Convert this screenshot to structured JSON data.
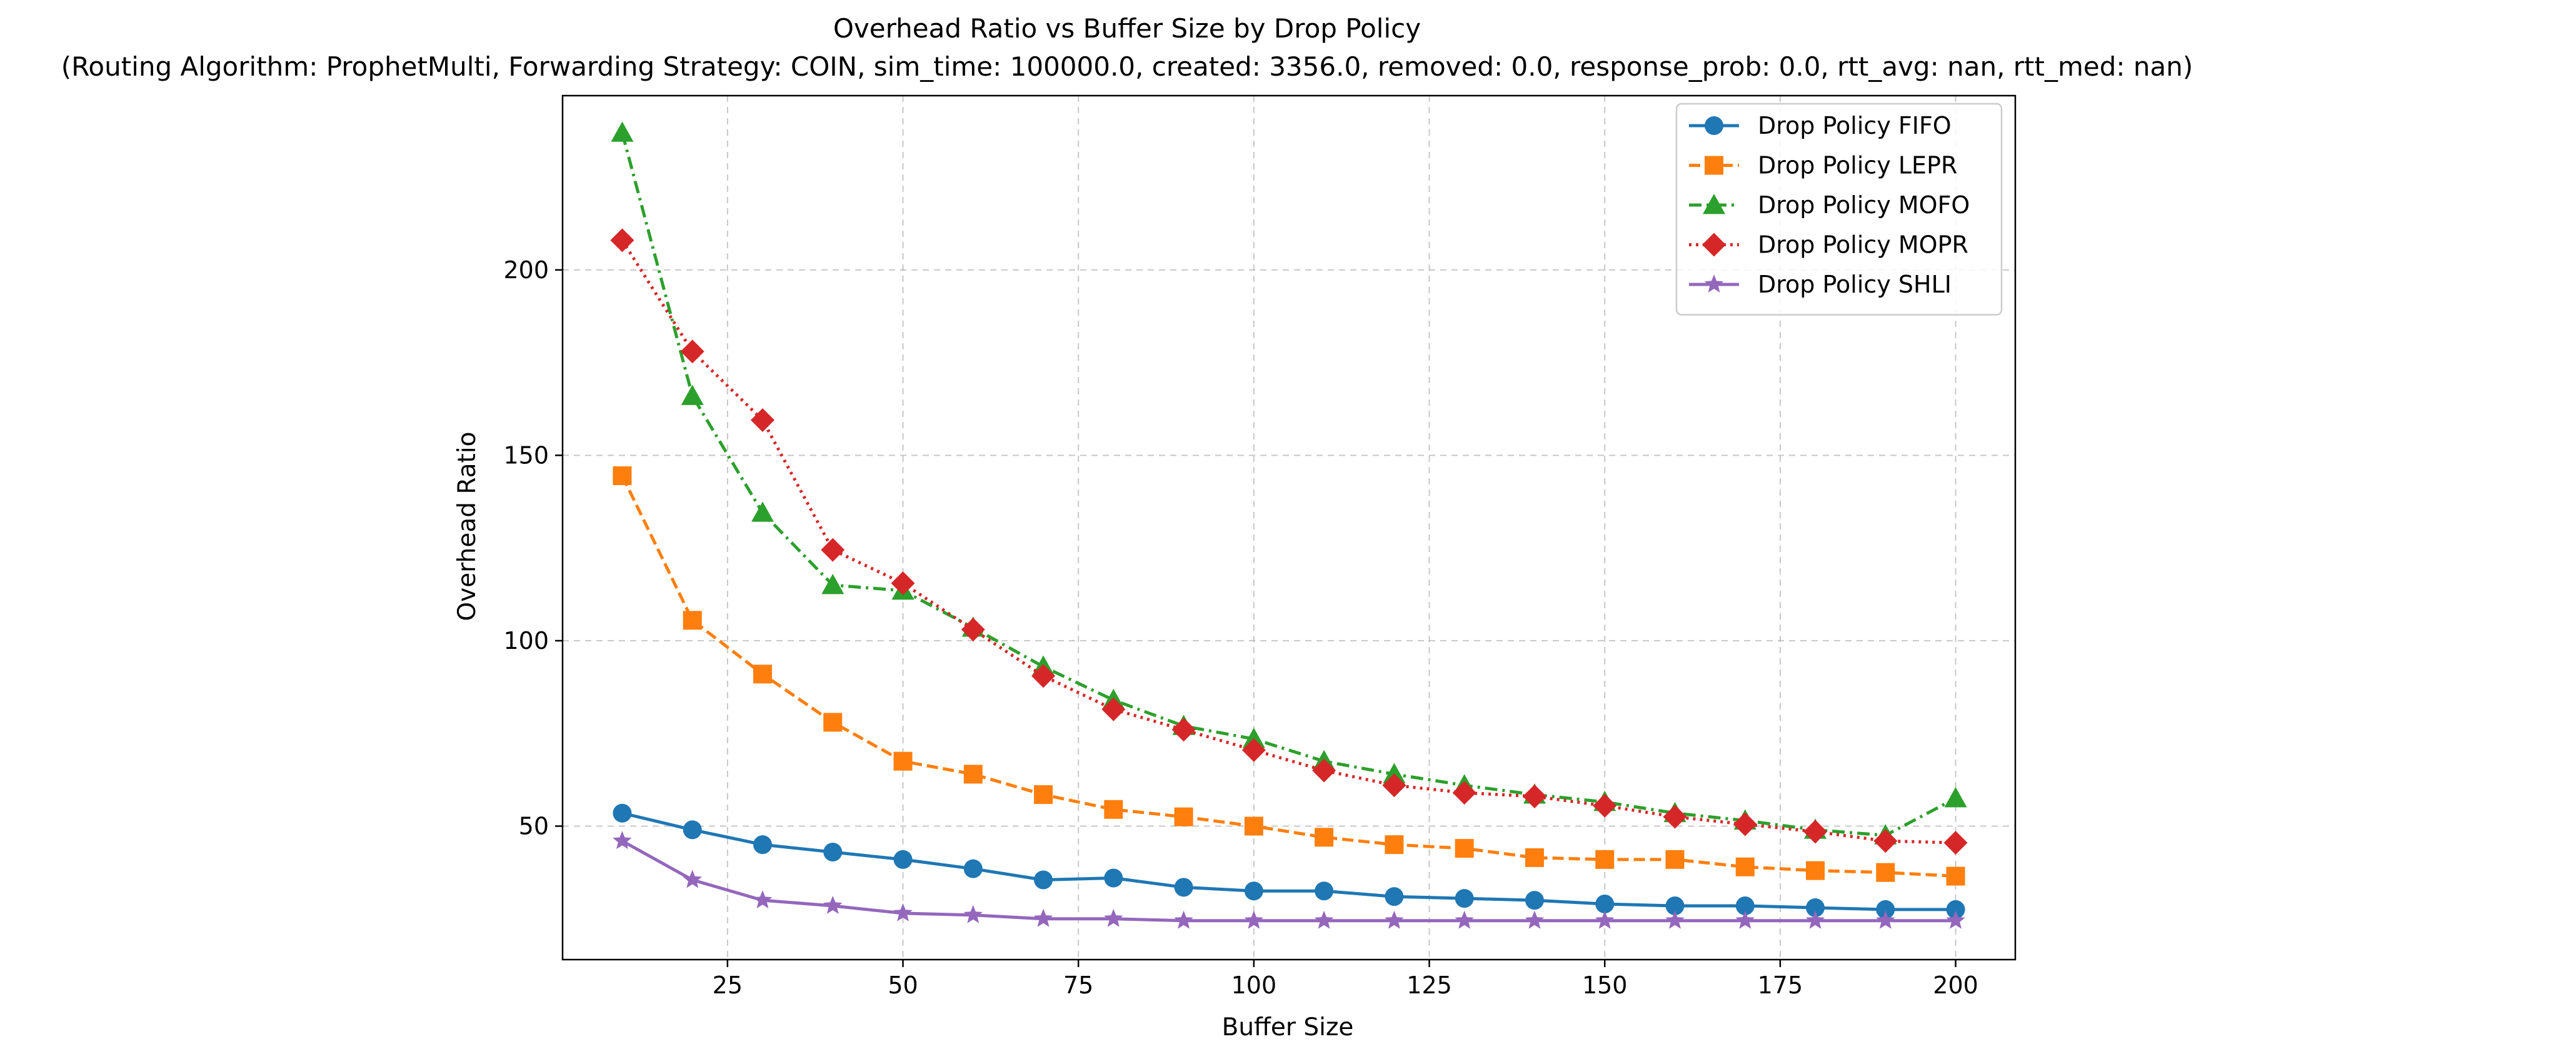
{
  "chart_data": {
    "type": "line",
    "title": "Overhead Ratio vs Buffer Size by Drop Policy",
    "subtitle": "(Routing Algorithm: ProphetMulti, Forwarding Strategy: COIN, sim_time: 100000.0, created: 3356.0, removed: 0.0, response_prob: 0.0, rtt_avg: nan, rtt_med: nan)",
    "xlabel": "Buffer Size",
    "ylabel": "Overhead Ratio",
    "xlim": [
      1.5,
      208.5
    ],
    "ylim": [
      14,
      247
    ],
    "xticks": [
      25,
      50,
      75,
      100,
      125,
      150,
      175,
      200
    ],
    "yticks": [
      50,
      100,
      150,
      200
    ],
    "grid": true,
    "legend_position": "top-right",
    "x": [
      10,
      20,
      30,
      40,
      50,
      60,
      70,
      80,
      90,
      100,
      110,
      120,
      130,
      140,
      150,
      160,
      170,
      180,
      190,
      200
    ],
    "series": [
      {
        "name": "Drop Policy FIFO",
        "color": "#1f77b4",
        "marker": "circle",
        "dash": "solid",
        "values": [
          53.5,
          49,
          45,
          43,
          41,
          38.5,
          35.5,
          36,
          33.5,
          32.5,
          32.5,
          31,
          30.5,
          30,
          29,
          28.5,
          28.5,
          28,
          27.5,
          27.5
        ]
      },
      {
        "name": "Drop Policy LEPR",
        "color": "#ff7f0e",
        "marker": "square",
        "dash": "dashed",
        "values": [
          144.5,
          105.5,
          91,
          78,
          67.5,
          64,
          58.5,
          54.5,
          52.5,
          50,
          47,
          45,
          44,
          41.5,
          41,
          41,
          39,
          38,
          37.5,
          36.5
        ]
      },
      {
        "name": "Drop Policy MOFO",
        "color": "#2ca02c",
        "marker": "triangle",
        "dash": "dashdot",
        "values": [
          237,
          166,
          134.5,
          115,
          113.5,
          103.5,
          93,
          84,
          77,
          73.5,
          67.5,
          64,
          61,
          58.5,
          56.5,
          53.5,
          51.5,
          49,
          47.5,
          57.5
        ]
      },
      {
        "name": "Drop Policy MOPR",
        "color": "#d62728",
        "marker": "diamond",
        "dash": "dotted",
        "values": [
          208,
          178,
          159.5,
          124.5,
          115.5,
          103,
          90.5,
          81.5,
          76,
          70.5,
          65,
          61,
          59,
          58,
          55.5,
          52.5,
          50.5,
          48.5,
          46,
          45.5
        ]
      },
      {
        "name": "Drop Policy SHLI",
        "color": "#9467bd",
        "marker": "star",
        "dash": "solid",
        "values": [
          46,
          35.5,
          30,
          28.5,
          26.5,
          26,
          25,
          25,
          24.5,
          24.5,
          24.5,
          24.5,
          24.5,
          24.5,
          24.5,
          24.5,
          24.5,
          24.5,
          24.5,
          24.5
        ]
      }
    ]
  }
}
